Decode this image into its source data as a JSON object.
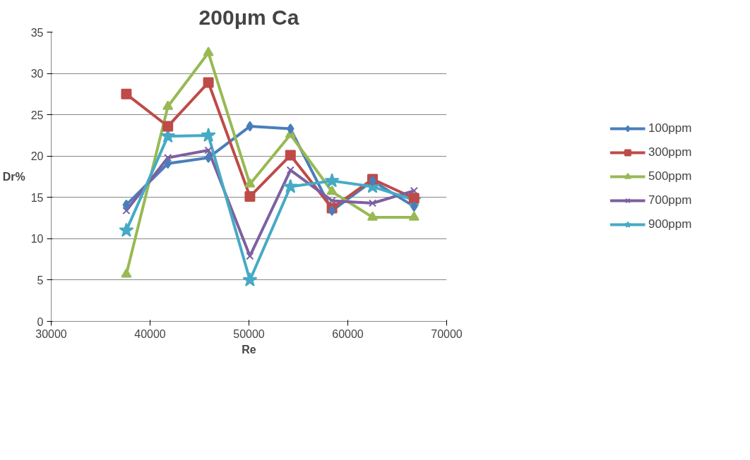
{
  "chart_data": {
    "type": "line",
    "title": "200μm Ca",
    "xlabel": "Re",
    "ylabel": "Dr%",
    "x": [
      37600,
      41800,
      45900,
      50100,
      54200,
      58400,
      62500,
      66700
    ],
    "series": [
      {
        "name": "100ppm",
        "color": "#4a7ebb",
        "marker": "diamond",
        "values": [
          14.1,
          19.1,
          19.8,
          23.6,
          23.3,
          13.4,
          17.0,
          13.9
        ]
      },
      {
        "name": "300ppm",
        "color": "#be4b48",
        "marker": "square",
        "values": [
          27.5,
          23.6,
          28.9,
          15.1,
          20.1,
          13.7,
          17.2,
          14.9
        ]
      },
      {
        "name": "500ppm",
        "color": "#98b954",
        "marker": "triangle",
        "values": [
          5.7,
          26.0,
          32.5,
          16.6,
          22.6,
          15.7,
          12.6,
          12.6
        ]
      },
      {
        "name": "700ppm",
        "color": "#7d60a0",
        "marker": "cross",
        "values": [
          13.4,
          19.8,
          20.7,
          7.9,
          18.3,
          14.6,
          14.3,
          15.8
        ]
      },
      {
        "name": "900ppm",
        "color": "#46aac5",
        "marker": "star",
        "values": [
          11.0,
          22.4,
          22.5,
          5.0,
          16.3,
          17.0,
          16.3,
          14.7
        ]
      }
    ],
    "xlim": [
      30000,
      70000
    ],
    "xticks": [
      30000,
      40000,
      50000,
      60000,
      70000
    ],
    "ylim": [
      0,
      35
    ],
    "yticks": [
      0,
      5,
      10,
      15,
      20,
      25,
      30,
      35
    ],
    "grid": "y",
    "legend": "right",
    "line_style": "solid"
  }
}
